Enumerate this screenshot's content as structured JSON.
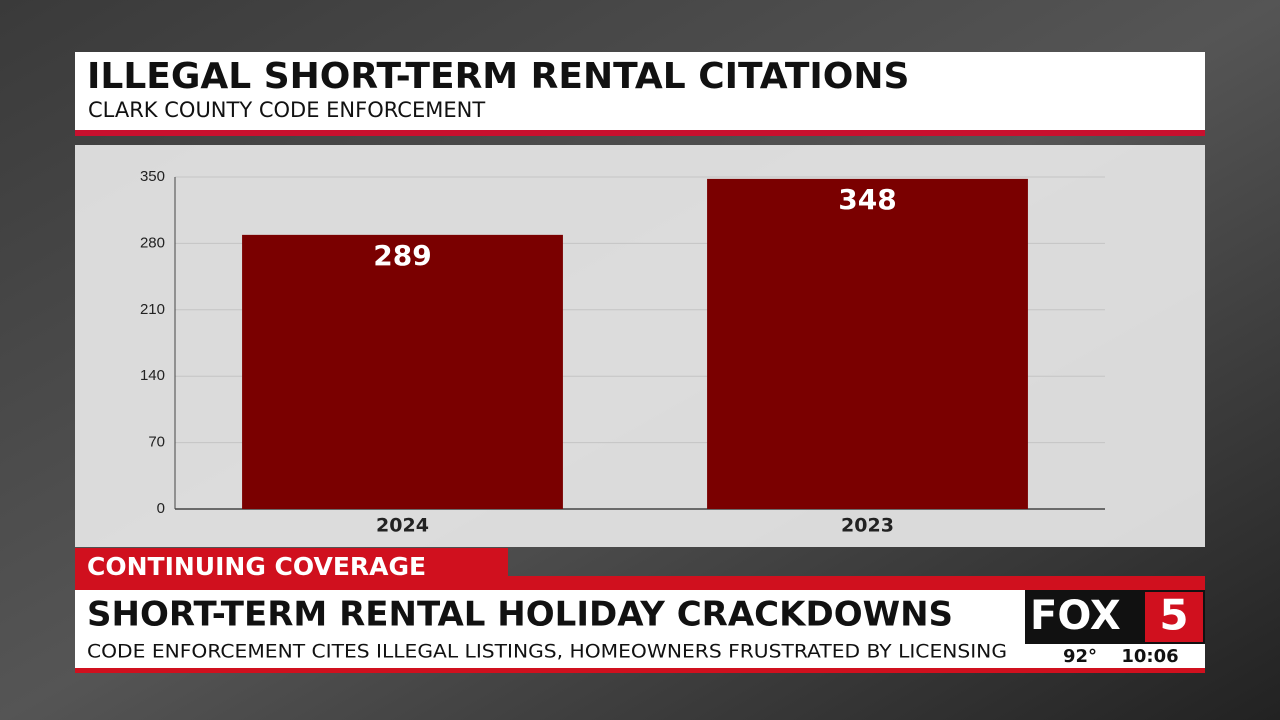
{
  "chart_data": {
    "type": "bar",
    "title": "ILLEGAL SHORT-TERM RENTAL CITATIONS",
    "subtitle": "CLARK COUNTY CODE ENFORCEMENT",
    "categories": [
      "2024",
      "2023"
    ],
    "values": [
      289,
      348
    ],
    "color": "#7a0000",
    "ylim": [
      0,
      350
    ],
    "yticks": [
      0,
      70,
      140,
      210,
      280,
      350
    ],
    "grid": true
  },
  "banner": {
    "tag": "CONTINUING COVERAGE",
    "headline": "SHORT-TERM RENTAL HOLIDAY CRACKDOWNS",
    "subhead": "CODE ENFORCEMENT CITES ILLEGAL LISTINGS, HOMEOWNERS FRUSTRATED BY LICENSING"
  },
  "station": {
    "logo": "FOX",
    "channel": "5",
    "temperature": "92°",
    "time": "10:06"
  }
}
